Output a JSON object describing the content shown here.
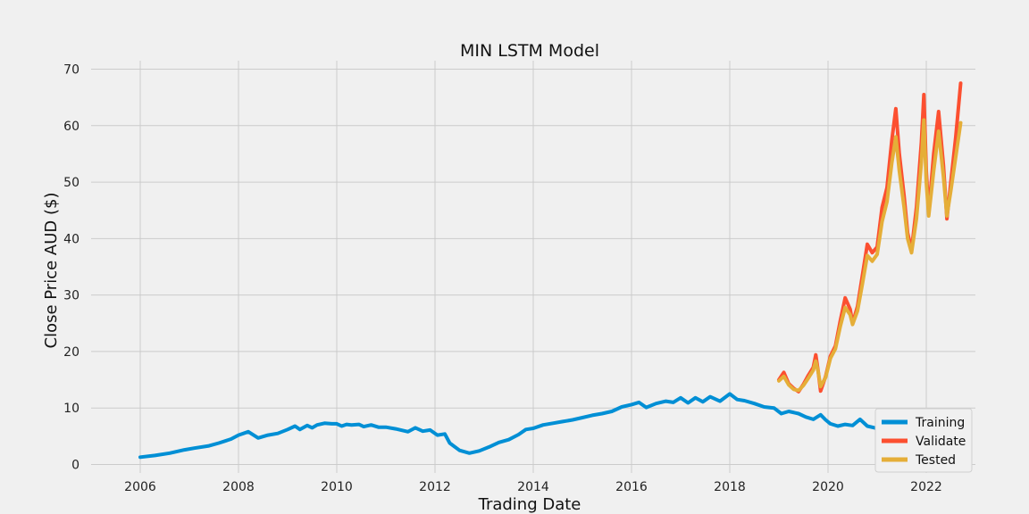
{
  "chart_data": {
    "type": "line",
    "title": "MIN LSTM Model",
    "xlabel": "Trading Date",
    "ylabel": "Close Price AUD ($)",
    "xlim": [
      2005.0,
      2023.0
    ],
    "ylim": [
      -1.5,
      71.5
    ],
    "xticks": [
      2006,
      2008,
      2010,
      2012,
      2014,
      2016,
      2018,
      2020,
      2022
    ],
    "yticks": [
      0,
      10,
      20,
      30,
      40,
      50,
      60,
      70
    ],
    "grid": true,
    "legend_position": "bottom-right",
    "series": [
      {
        "name": "Training",
        "color": "#008fd5",
        "points": [
          [
            2006.0,
            1.3
          ],
          [
            2006.3,
            1.6
          ],
          [
            2006.6,
            2.0
          ],
          [
            2006.9,
            2.6
          ],
          [
            2007.1,
            2.9
          ],
          [
            2007.4,
            3.3
          ],
          [
            2007.6,
            3.8
          ],
          [
            2007.85,
            4.5
          ],
          [
            2008.0,
            5.2
          ],
          [
            2008.2,
            5.8
          ],
          [
            2008.4,
            4.7
          ],
          [
            2008.6,
            5.2
          ],
          [
            2008.8,
            5.5
          ],
          [
            2009.0,
            6.2
          ],
          [
            2009.15,
            6.8
          ],
          [
            2009.25,
            6.2
          ],
          [
            2009.4,
            6.9
          ],
          [
            2009.5,
            6.5
          ],
          [
            2009.6,
            7.0
          ],
          [
            2009.75,
            7.3
          ],
          [
            2009.9,
            7.2
          ],
          [
            2010.0,
            7.2
          ],
          [
            2010.1,
            6.8
          ],
          [
            2010.2,
            7.1
          ],
          [
            2010.3,
            7.0
          ],
          [
            2010.45,
            7.1
          ],
          [
            2010.55,
            6.7
          ],
          [
            2010.7,
            7.0
          ],
          [
            2010.85,
            6.6
          ],
          [
            2011.0,
            6.6
          ],
          [
            2011.2,
            6.3
          ],
          [
            2011.45,
            5.8
          ],
          [
            2011.6,
            6.5
          ],
          [
            2011.75,
            5.9
          ],
          [
            2011.9,
            6.1
          ],
          [
            2012.05,
            5.2
          ],
          [
            2012.2,
            5.4
          ],
          [
            2012.3,
            3.8
          ],
          [
            2012.5,
            2.5
          ],
          [
            2012.7,
            2.0
          ],
          [
            2012.9,
            2.4
          ],
          [
            2013.1,
            3.1
          ],
          [
            2013.3,
            3.9
          ],
          [
            2013.5,
            4.4
          ],
          [
            2013.7,
            5.3
          ],
          [
            2013.85,
            6.2
          ],
          [
            2014.0,
            6.4
          ],
          [
            2014.2,
            7.0
          ],
          [
            2014.4,
            7.3
          ],
          [
            2014.6,
            7.6
          ],
          [
            2014.8,
            7.9
          ],
          [
            2015.0,
            8.3
          ],
          [
            2015.2,
            8.7
          ],
          [
            2015.4,
            9.0
          ],
          [
            2015.6,
            9.4
          ],
          [
            2015.8,
            10.2
          ],
          [
            2016.0,
            10.6
          ],
          [
            2016.15,
            11.0
          ],
          [
            2016.3,
            10.1
          ],
          [
            2016.5,
            10.8
          ],
          [
            2016.7,
            11.2
          ],
          [
            2016.85,
            11.0
          ],
          [
            2017.0,
            11.8
          ],
          [
            2017.15,
            10.9
          ],
          [
            2017.3,
            11.8
          ],
          [
            2017.45,
            11.1
          ],
          [
            2017.6,
            12.0
          ],
          [
            2017.8,
            11.2
          ],
          [
            2018.0,
            12.5
          ],
          [
            2018.15,
            11.5
          ],
          [
            2018.3,
            11.3
          ],
          [
            2018.5,
            10.8
          ],
          [
            2018.7,
            10.2
          ],
          [
            2018.9,
            10.0
          ],
          [
            2019.05,
            9.0
          ],
          [
            2019.2,
            9.4
          ],
          [
            2019.4,
            9.0
          ],
          [
            2019.55,
            8.4
          ],
          [
            2019.7,
            8.0
          ],
          [
            2019.85,
            8.8
          ],
          [
            2019.95,
            7.9
          ],
          [
            2020.05,
            7.2
          ],
          [
            2020.2,
            6.8
          ],
          [
            2020.35,
            7.1
          ],
          [
            2020.5,
            6.9
          ],
          [
            2020.65,
            8.0
          ],
          [
            2020.8,
            6.8
          ],
          [
            2020.95,
            6.5
          ],
          [
            2021.1,
            5.9
          ],
          [
            2021.2,
            5.5
          ],
          [
            2021.35,
            4.9
          ],
          [
            2021.5,
            4.5
          ],
          [
            2021.65,
            4.8
          ],
          [
            2021.8,
            4.3
          ],
          [
            2021.9,
            4.2
          ],
          [
            2022.0,
            4.0
          ],
          [
            2022.1,
            4.5
          ],
          [
            2022.2,
            4.2
          ]
        ]
      },
      {
        "name": "Validate",
        "color": "#fc4f30",
        "points": [
          [
            2019.0,
            15.0
          ],
          [
            2019.1,
            16.3
          ],
          [
            2019.2,
            14.3
          ],
          [
            2019.3,
            13.5
          ],
          [
            2019.4,
            12.9
          ],
          [
            2019.5,
            14.2
          ],
          [
            2019.6,
            15.8
          ],
          [
            2019.7,
            17.2
          ],
          [
            2019.75,
            19.4
          ],
          [
            2019.8,
            16.5
          ],
          [
            2019.85,
            13.0
          ],
          [
            2019.95,
            15.6
          ],
          [
            2020.05,
            19.2
          ],
          [
            2020.15,
            21.0
          ],
          [
            2020.25,
            25.5
          ],
          [
            2020.35,
            29.5
          ],
          [
            2020.45,
            27.5
          ],
          [
            2020.5,
            25.0
          ],
          [
            2020.6,
            28.0
          ],
          [
            2020.7,
            33.5
          ],
          [
            2020.8,
            39.0
          ],
          [
            2020.9,
            37.5
          ],
          [
            2021.0,
            38.5
          ],
          [
            2021.1,
            45.5
          ],
          [
            2021.2,
            49.0
          ],
          [
            2021.3,
            57.5
          ],
          [
            2021.38,
            63.0
          ],
          [
            2021.45,
            55.0
          ],
          [
            2021.55,
            47.5
          ],
          [
            2021.62,
            41.0
          ],
          [
            2021.7,
            38.0
          ],
          [
            2021.8,
            45.5
          ],
          [
            2021.9,
            57.0
          ],
          [
            2021.95,
            65.5
          ],
          [
            2022.0,
            52.0
          ],
          [
            2022.05,
            44.5
          ],
          [
            2022.15,
            55.0
          ],
          [
            2022.25,
            62.5
          ],
          [
            2022.35,
            53.0
          ],
          [
            2022.42,
            43.5
          ],
          [
            2022.5,
            50.0
          ],
          [
            2022.6,
            58.0
          ],
          [
            2022.7,
            67.5
          ]
        ]
      },
      {
        "name": "Tested",
        "color": "#e5ae38",
        "points": [
          [
            2019.0,
            14.8
          ],
          [
            2019.1,
            15.6
          ],
          [
            2019.2,
            14.1
          ],
          [
            2019.3,
            13.3
          ],
          [
            2019.4,
            13.1
          ],
          [
            2019.5,
            14.0
          ],
          [
            2019.6,
            15.3
          ],
          [
            2019.7,
            16.7
          ],
          [
            2019.75,
            18.3
          ],
          [
            2019.8,
            16.4
          ],
          [
            2019.85,
            13.8
          ],
          [
            2019.95,
            15.4
          ],
          [
            2020.05,
            18.8
          ],
          [
            2020.15,
            20.5
          ],
          [
            2020.25,
            24.5
          ],
          [
            2020.35,
            27.8
          ],
          [
            2020.45,
            26.5
          ],
          [
            2020.5,
            24.8
          ],
          [
            2020.6,
            27.2
          ],
          [
            2020.7,
            32.0
          ],
          [
            2020.8,
            37.0
          ],
          [
            2020.9,
            36.0
          ],
          [
            2021.0,
            37.2
          ],
          [
            2021.1,
            43.0
          ],
          [
            2021.2,
            46.5
          ],
          [
            2021.3,
            53.5
          ],
          [
            2021.38,
            58.0
          ],
          [
            2021.45,
            52.0
          ],
          [
            2021.55,
            45.5
          ],
          [
            2021.62,
            40.0
          ],
          [
            2021.7,
            37.5
          ],
          [
            2021.8,
            43.5
          ],
          [
            2021.9,
            53.5
          ],
          [
            2021.95,
            61.0
          ],
          [
            2022.0,
            50.0
          ],
          [
            2022.05,
            44.0
          ],
          [
            2022.15,
            52.0
          ],
          [
            2022.25,
            59.0
          ],
          [
            2022.35,
            51.0
          ],
          [
            2022.42,
            44.0
          ],
          [
            2022.5,
            48.5
          ],
          [
            2022.6,
            54.5
          ],
          [
            2022.7,
            60.5
          ]
        ]
      }
    ]
  }
}
